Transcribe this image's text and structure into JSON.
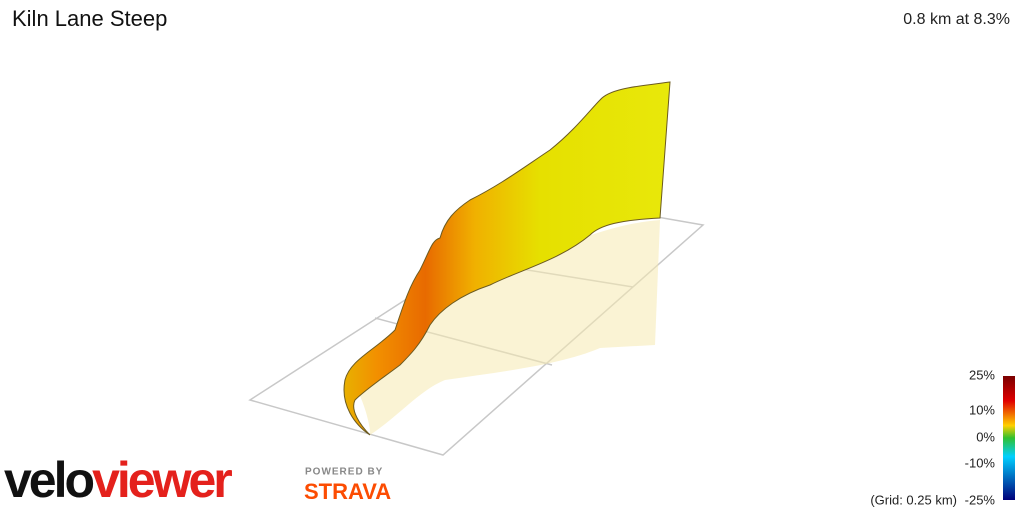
{
  "header": {
    "title": "Kiln Lane Steep",
    "summary": "0.8 km at 8.3%"
  },
  "legend": {
    "labels": [
      "25%",
      "10%",
      "0%",
      "-10%",
      "-25%"
    ],
    "grid_note": "(Grid: 0.25 km)"
  },
  "branding": {
    "logo_part1": "velo",
    "logo_part2": "viewer",
    "powered_by": "POWERED BY",
    "partner": "STRAVA"
  }
}
